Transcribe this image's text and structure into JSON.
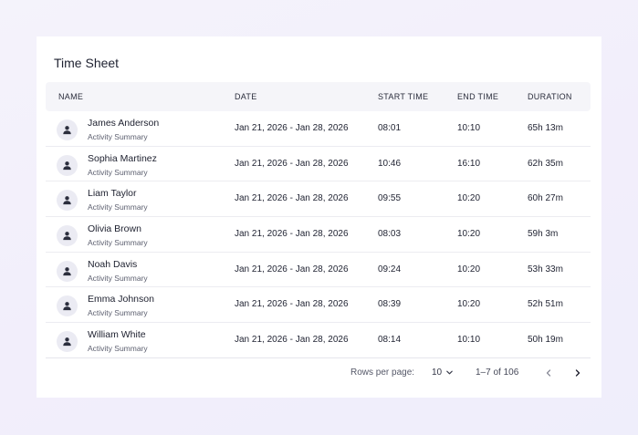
{
  "title": "Time Sheet",
  "columns": {
    "name": "NAME",
    "date": "DATE",
    "start": "START TIME",
    "end": "END TIME",
    "duration": "DURATION"
  },
  "rows": [
    {
      "name": "James Anderson",
      "sub": "Activity Summary",
      "date": "Jan 21, 2026 - Jan 28, 2026",
      "start": "08:01",
      "end": "10:10",
      "duration": "65h 13m"
    },
    {
      "name": "Sophia Martinez",
      "sub": "Activity Summary",
      "date": "Jan 21, 2026 - Jan 28, 2026",
      "start": "10:46",
      "end": "16:10",
      "duration": "62h 35m"
    },
    {
      "name": "Liam Taylor",
      "sub": "Activity Summary",
      "date": "Jan 21, 2026 - Jan 28, 2026",
      "start": "09:55",
      "end": "10:20",
      "duration": "60h 27m"
    },
    {
      "name": "Olivia Brown",
      "sub": "Activity Summary",
      "date": "Jan 21, 2026 - Jan 28, 2026",
      "start": "08:03",
      "end": "10:20",
      "duration": "59h 3m"
    },
    {
      "name": "Noah Davis",
      "sub": "Activity Summary",
      "date": "Jan 21, 2026 - Jan 28, 2026",
      "start": "09:24",
      "end": "10:20",
      "duration": "53h 33m"
    },
    {
      "name": "Emma Johnson",
      "sub": "Activity Summary",
      "date": "Jan 21, 2026 - Jan 28, 2026",
      "start": "08:39",
      "end": "10:20",
      "duration": "52h 51m"
    },
    {
      "name": "William White",
      "sub": "Activity Summary",
      "date": "Jan 21, 2026 - Jan 28, 2026",
      "start": "08:14",
      "end": "10:10",
      "duration": "50h 19m"
    }
  ],
  "footer": {
    "rows_per_page_label": "Rows per page:",
    "rows_per_page_value": "10",
    "range": "1–7 of 106",
    "prev_icon": "chevron-left-icon",
    "next_icon": "chevron-right-icon"
  },
  "icons": {
    "avatar": "person-icon",
    "dropdown": "chevron-down-icon"
  },
  "colors": {
    "background": "#f3f1fb",
    "card": "#ffffff",
    "header_bg": "#f5f5f9",
    "avatar_bg": "#ebebf3",
    "avatar_icon": "#2b2e3d"
  }
}
